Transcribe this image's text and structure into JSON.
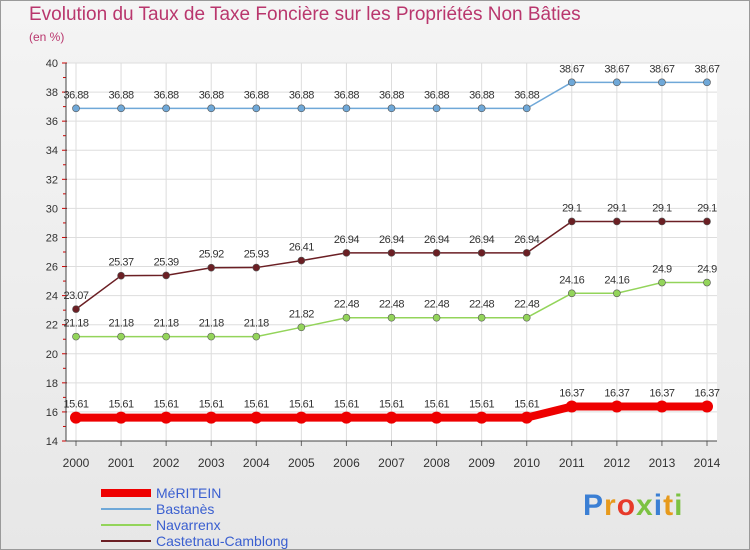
{
  "title": "Evolution du Taux de Taxe Foncière sur les Propriétés Non Bâties",
  "unit_label": "(en %)",
  "logo": {
    "text": "Proxiti",
    "letters": [
      "P",
      "r",
      "o",
      "x",
      "i",
      "t",
      "i"
    ],
    "colors": [
      "#3b7fd4",
      "#e79a1c",
      "#e73a2a",
      "#7cc242",
      "#3b7fd4",
      "#e79a1c",
      "#7cc242"
    ]
  },
  "chart_data": {
    "type": "line",
    "title": "Evolution du Taux de Taxe Foncière sur les Propriétés Non Bâties",
    "ylabel": "(en %)",
    "xlabel": "",
    "ylim": [
      14,
      40
    ],
    "yticks": [
      14,
      16,
      18,
      20,
      22,
      24,
      26,
      28,
      30,
      32,
      34,
      36,
      38,
      40
    ],
    "categories": [
      "2000",
      "2001",
      "2002",
      "2003",
      "2004",
      "2005",
      "2006",
      "2007",
      "2008",
      "2009",
      "2010",
      "2011",
      "2012",
      "2013",
      "2014"
    ],
    "grid": true,
    "series": [
      {
        "name": "MéRITEIN",
        "color": "#ee0000",
        "emphasis": true,
        "values": [
          15.61,
          15.61,
          15.61,
          15.61,
          15.61,
          15.61,
          15.61,
          15.61,
          15.61,
          15.61,
          15.61,
          16.37,
          16.37,
          16.37,
          16.37
        ],
        "labels": [
          "15.61",
          "15.61",
          "15.61",
          "15.61",
          "15.61",
          "15.61",
          "15.61",
          "15.61",
          "15.61",
          "15.61",
          "15.61",
          "16.37",
          "16.37",
          "16.37",
          "16.37"
        ]
      },
      {
        "name": "Bastanès",
        "color": "#6fa8d8",
        "emphasis": false,
        "values": [
          36.88,
          36.88,
          36.88,
          36.88,
          36.88,
          36.88,
          36.88,
          36.88,
          36.88,
          36.88,
          36.88,
          38.67,
          38.67,
          38.67,
          38.67
        ],
        "labels": [
          "36.88",
          "36.88",
          "36.88",
          "36.88",
          "36.88",
          "36.88",
          "36.88",
          "36.88",
          "36.88",
          "36.88",
          "36.88",
          "38.67",
          "38.67",
          "38.67",
          "38.67"
        ]
      },
      {
        "name": "Navarrenx",
        "color": "#93d45a",
        "emphasis": false,
        "values": [
          21.18,
          21.18,
          21.18,
          21.18,
          21.18,
          21.82,
          22.48,
          22.48,
          22.48,
          22.48,
          22.48,
          24.16,
          24.16,
          24.9,
          24.9
        ],
        "labels": [
          "21.18",
          "21.18",
          "21.18",
          "21.18",
          "21.18",
          "21.82",
          "22.48",
          "22.48",
          "22.48",
          "22.48",
          "22.48",
          "24.16",
          "24.16",
          "24.9",
          "24.9"
        ]
      },
      {
        "name": "Castetnau-Camblong",
        "color": "#6b1f24",
        "emphasis": false,
        "values": [
          23.07,
          25.37,
          25.39,
          25.92,
          25.93,
          26.41,
          26.94,
          26.94,
          26.94,
          26.94,
          26.94,
          29.1,
          29.1,
          29.1,
          29.1
        ],
        "labels": [
          "23.07",
          "25.37",
          "25.39",
          "25.92",
          "25.93",
          "26.41",
          "26.94",
          "26.94",
          "26.94",
          "26.94",
          "26.94",
          "29.1",
          "29.1",
          "29.1",
          "29.1"
        ]
      }
    ]
  }
}
